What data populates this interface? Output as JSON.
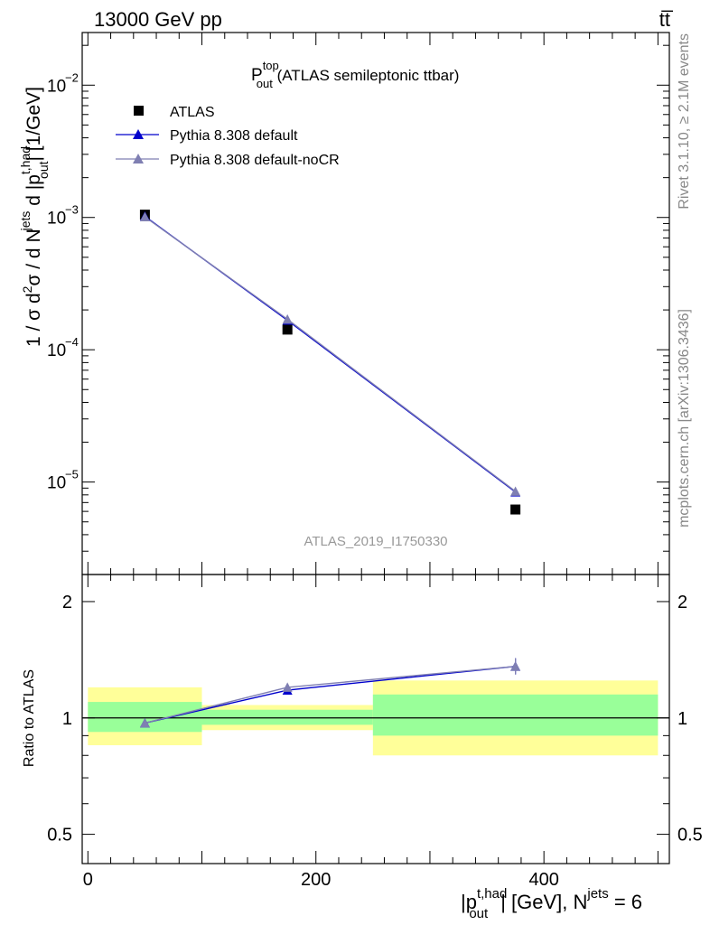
{
  "header": {
    "left": "13000 GeV pp",
    "right": "tt̅"
  },
  "side_labels": {
    "rivet": "Rivet 3.1.10, ≥ 2.1M events",
    "mcplots": "mcplots.cern.ch [arXiv:1306.3436]"
  },
  "chart_data": [
    {
      "type": "line",
      "panel": "main",
      "title_main": "P",
      "title_sup": "top",
      "title_sub": "out",
      "title_rest": " (ATLAS semileptonic ttbar)",
      "analysis_label": "ATLAS_2019_I1750330",
      "yscale": "log",
      "ylim": [
        2e-06,
        0.025
      ],
      "xlim": [
        -5,
        510
      ],
      "ylabel": {
        "prefix": "1 / σ d",
        "exp2": "2",
        "mid1": "σ / d N",
        "jets": "jets",
        "mid2": " d |p",
        "sup_thad": "t,had",
        "sub_out": "out",
        "unit": "| [1/GeV]"
      },
      "ytick_labels": [
        {
          "value": 1e-05,
          "base": "10",
          "exp": "−5"
        },
        {
          "value": 0.0001,
          "base": "10",
          "exp": "−4"
        },
        {
          "value": 0.001,
          "base": "10",
          "exp": "−3"
        },
        {
          "value": 0.01,
          "base": "10",
          "exp": "−2"
        }
      ],
      "legend_position": "top-left",
      "series": [
        {
          "name": "ATLAS",
          "marker": "square",
          "color": "#000000",
          "x": [
            50,
            175,
            375
          ],
          "y": [
            0.00105,
            0.000142,
            6.2e-06
          ]
        },
        {
          "name": "Pythia 8.308 default",
          "marker": "triangle",
          "color": "#0000cc",
          "x": [
            50,
            175,
            375
          ],
          "y": [
            0.00102,
            0.000167,
            8.4e-06
          ]
        },
        {
          "name": "Pythia 8.308 default-noCR",
          "marker": "triangle",
          "color": "#7f7fb2",
          "x": [
            50,
            175,
            375
          ],
          "y": [
            0.00101,
            0.00017,
            8.5e-06
          ]
        }
      ]
    },
    {
      "type": "line",
      "panel": "ratio",
      "ylabel": "Ratio to ATLAS",
      "yscale": "log",
      "ylim": [
        0.42,
        2.35
      ],
      "xlim": [
        -5,
        510
      ],
      "xticks": [
        0,
        200,
        400
      ],
      "xtick_labels": [
        "0",
        "200",
        "400"
      ],
      "yticks": [
        0.5,
        1,
        2
      ],
      "ytick_labels": [
        "0.5",
        "1",
        "2"
      ],
      "xlabel": {
        "pre": "|p",
        "sup": "t,had",
        "sub": "out",
        "mid": "| [GeV], N",
        "jets": "jets",
        "post": " = 6"
      },
      "bands": [
        {
          "x0": 0,
          "x1": 100,
          "yellow": [
            0.85,
            1.2
          ],
          "green": [
            0.92,
            1.1
          ]
        },
        {
          "x0": 100,
          "x1": 250,
          "yellow": [
            0.93,
            1.08
          ],
          "green": [
            0.96,
            1.05
          ]
        },
        {
          "x0": 250,
          "x1": 500,
          "yellow": [
            0.8,
            1.25
          ],
          "green": [
            0.9,
            1.15
          ]
        }
      ],
      "reference_line": 1,
      "series": [
        {
          "name": "Pythia 8.308 default",
          "color": "#0000cc",
          "x": [
            50,
            175,
            375
          ],
          "y": [
            0.97,
            1.18,
            1.36
          ]
        },
        {
          "name": "Pythia 8.308 default-noCR",
          "color": "#7f7fb2",
          "x": [
            50,
            175,
            375
          ],
          "y": [
            0.97,
            1.2,
            1.36
          ]
        }
      ]
    }
  ]
}
